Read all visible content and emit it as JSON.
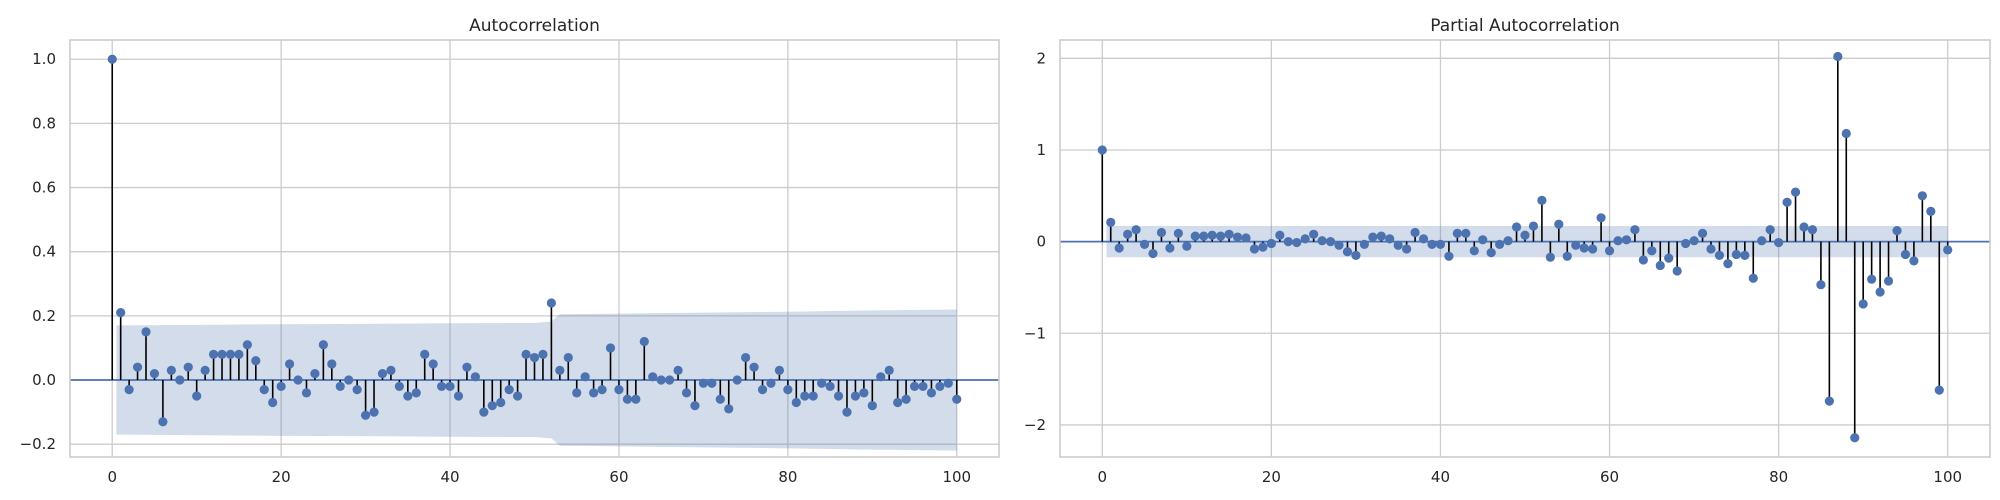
{
  "chart_data": [
    {
      "type": "stem",
      "title": "Autocorrelation",
      "xlim": [
        -5,
        105
      ],
      "ylim": [
        -0.24,
        1.06
      ],
      "xticks": [
        0,
        20,
        40,
        60,
        80,
        100
      ],
      "yticks": [
        -0.2,
        0.0,
        0.2,
        0.4,
        0.6,
        0.8,
        1.0
      ],
      "ytick_labels": [
        "−0.2",
        "0.0",
        "0.2",
        "0.4",
        "0.6",
        "0.8",
        "1.0"
      ],
      "grid": true,
      "confidence_band": {
        "x": [
          1,
          10,
          20,
          30,
          40,
          50,
          52,
          53,
          60,
          70,
          80,
          90,
          100
        ],
        "upper": [
          0.17,
          0.172,
          0.174,
          0.175,
          0.177,
          0.178,
          0.182,
          0.205,
          0.207,
          0.21,
          0.213,
          0.217,
          0.22
        ],
        "lower": [
          -0.17,
          -0.172,
          -0.174,
          -0.175,
          -0.177,
          -0.178,
          -0.182,
          -0.205,
          -0.207,
          -0.21,
          -0.213,
          -0.217,
          -0.22
        ]
      },
      "values": [
        1.0,
        0.21,
        -0.03,
        0.04,
        0.15,
        0.02,
        -0.13,
        0.03,
        0.0,
        0.04,
        -0.05,
        0.03,
        0.08,
        0.08,
        0.08,
        0.08,
        0.11,
        0.06,
        -0.03,
        -0.07,
        -0.02,
        0.05,
        0.0,
        -0.04,
        0.02,
        0.11,
        0.05,
        -0.02,
        0.0,
        -0.03,
        -0.11,
        -0.1,
        0.02,
        0.03,
        -0.02,
        -0.05,
        -0.04,
        0.08,
        0.05,
        -0.02,
        -0.02,
        -0.05,
        0.04,
        0.01,
        -0.1,
        -0.08,
        -0.07,
        -0.03,
        -0.05,
        0.08,
        0.07,
        0.08,
        0.24,
        0.03,
        0.07,
        -0.04,
        0.01,
        -0.04,
        -0.03,
        0.1,
        -0.03,
        -0.06,
        -0.06,
        0.12,
        0.01,
        0.0,
        0.0,
        0.03,
        -0.04,
        -0.08,
        -0.01,
        -0.01,
        -0.06,
        -0.09,
        0.0,
        0.07,
        0.04,
        -0.03,
        -0.01,
        0.03,
        -0.03,
        -0.07,
        -0.05,
        -0.05,
        -0.01,
        -0.02,
        -0.05,
        -0.1,
        -0.05,
        -0.04,
        -0.08,
        0.01,
        0.03,
        -0.07,
        -0.06,
        -0.02,
        -0.02,
        -0.04,
        -0.02,
        -0.01,
        -0.06
      ]
    },
    {
      "type": "stem",
      "title": "Partial Autocorrelation",
      "xlim": [
        -5,
        105
      ],
      "ylim": [
        -2.35,
        2.2
      ],
      "xticks": [
        0,
        20,
        40,
        60,
        80,
        100
      ],
      "yticks": [
        -2,
        -1,
        0,
        1,
        2
      ],
      "ytick_labels": [
        "−2",
        "−1",
        "0",
        "1",
        "2"
      ],
      "grid": true,
      "confidence_band": {
        "x": [
          1,
          100
        ],
        "upper": [
          0.17,
          0.17
        ],
        "lower": [
          -0.17,
          -0.17
        ]
      },
      "values": [
        1.0,
        0.21,
        -0.07,
        0.08,
        0.13,
        -0.03,
        -0.13,
        0.1,
        -0.07,
        0.09,
        -0.05,
        0.06,
        0.06,
        0.07,
        0.06,
        0.08,
        0.05,
        0.04,
        -0.08,
        -0.06,
        -0.02,
        0.07,
        0.0,
        -0.01,
        0.03,
        0.08,
        0.01,
        0.0,
        -0.04,
        -0.11,
        -0.15,
        -0.03,
        0.05,
        0.06,
        0.03,
        -0.04,
        -0.08,
        0.1,
        0.03,
        -0.03,
        -0.03,
        -0.16,
        0.09,
        0.09,
        -0.1,
        0.02,
        -0.12,
        -0.03,
        0.01,
        0.16,
        0.07,
        0.17,
        0.45,
        -0.17,
        0.19,
        -0.16,
        -0.04,
        -0.07,
        -0.08,
        0.26,
        -0.1,
        0.01,
        0.02,
        0.13,
        -0.2,
        -0.1,
        -0.26,
        -0.18,
        -0.32,
        -0.02,
        0.01,
        0.09,
        -0.08,
        -0.15,
        -0.24,
        -0.14,
        -0.15,
        -0.4,
        0.01,
        0.13,
        -0.01,
        0.43,
        0.54,
        0.16,
        0.13,
        -0.47,
        -1.74,
        2.02,
        1.18,
        -2.14,
        -0.68,
        -0.41,
        -0.55,
        -0.43,
        0.12,
        -0.14,
        -0.21,
        0.5,
        0.33,
        -1.62,
        -0.09
      ]
    }
  ]
}
